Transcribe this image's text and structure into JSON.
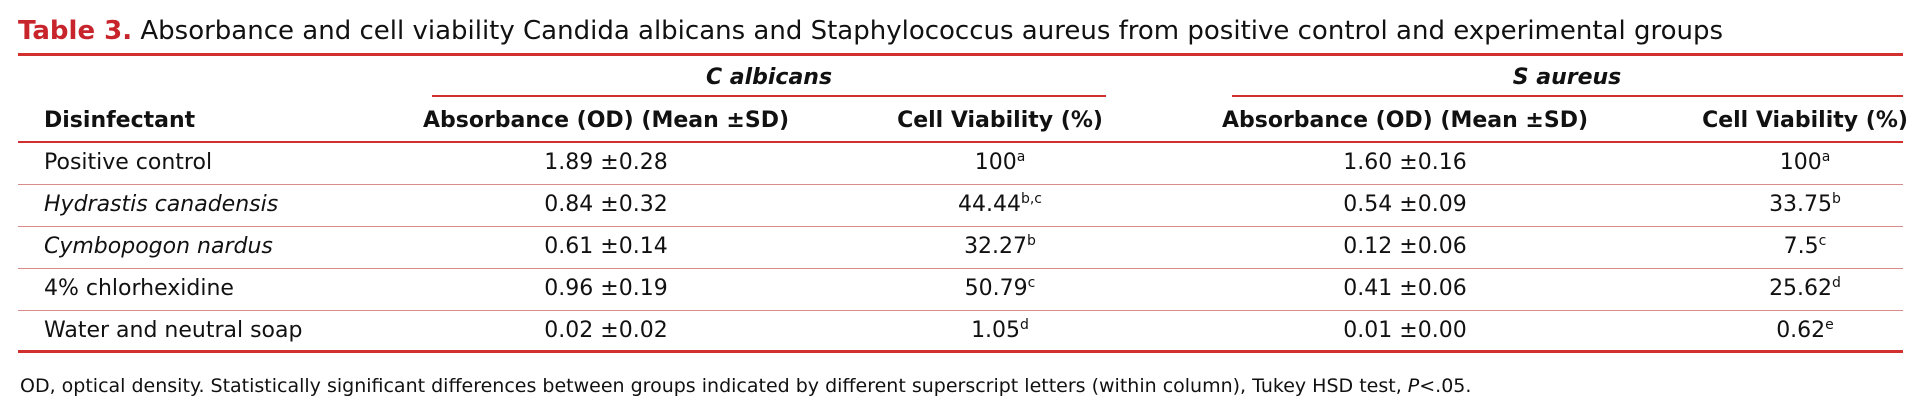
{
  "label": "Table 3.",
  "title": "Absorbance and cell viability Candida albicans and Staphylococcus aureus from positive control and experimental groups",
  "table": {
    "groups": [
      "C albicans",
      "S aureus"
    ],
    "columns": [
      "Disinfectant",
      "Absorbance (OD) (Mean ±SD)",
      "Cell Viability (%)",
      "Absorbance (OD) (Mean ±SD)",
      "Cell Viability (%)"
    ],
    "rows": [
      {
        "name": "Positive control",
        "italic": false,
        "cells": [
          {
            "text": "1.89 ±0.28"
          },
          {
            "text": "100",
            "sup": "a"
          },
          {
            "text": "1.60 ±0.16"
          },
          {
            "text": "100",
            "sup": "a"
          }
        ]
      },
      {
        "name": "Hydrastis canadensis",
        "italic": true,
        "cells": [
          {
            "text": "0.84 ±0.32"
          },
          {
            "text": "44.44",
            "sup": "b,c"
          },
          {
            "text": "0.54 ±0.09"
          },
          {
            "text": "33.75",
            "sup": "b"
          }
        ]
      },
      {
        "name": "Cymbopogon nardus",
        "italic": true,
        "cells": [
          {
            "text": "0.61 ±0.14"
          },
          {
            "text": "32.27",
            "sup": "b"
          },
          {
            "text": "0.12 ±0.06"
          },
          {
            "text": "7.5",
            "sup": "c"
          }
        ]
      },
      {
        "name": "4% chlorhexidine",
        "italic": false,
        "cells": [
          {
            "text": "0.96 ±0.19"
          },
          {
            "text": "50.79",
            "sup": "c"
          },
          {
            "text": "0.41 ±0.06"
          },
          {
            "text": "25.62",
            "sup": "d"
          }
        ]
      },
      {
        "name": "Water and neutral soap",
        "italic": false,
        "cells": [
          {
            "text": "0.02 ±0.02"
          },
          {
            "text": "1.05",
            "sup": "d"
          },
          {
            "text": "0.01 ±0.00"
          },
          {
            "text": "0.62",
            "sup": "e"
          }
        ]
      }
    ]
  },
  "note": {
    "text": "OD, optical density. Statistically significant differences between groups indicated by different superscript letters (within column), Tukey HSD test,",
    "p": "P",
    "tail": "<.05."
  }
}
